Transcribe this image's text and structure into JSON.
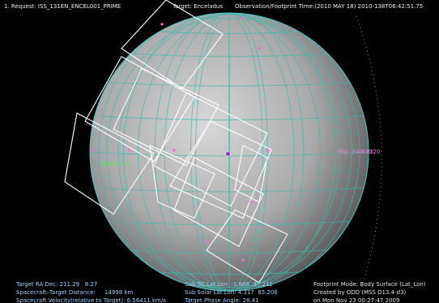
{
  "header": {
    "request": "1. Request: ISS_131EN_ENCEL001_PRIME",
    "target": "Target: Enceladus",
    "time": "Observation/Footprint Time:(2010 MAY 18) 2010-138T06:42:51.75"
  },
  "globe": {
    "body_label": "Enceladus",
    "longitude_labels": [
      "350",
      "340",
      "330",
      "320"
    ]
  },
  "footer": {
    "left": [
      "Target RA Dec: 211.29   8.27",
      "Spacecraft–Target Distance:     14998 km",
      "Spacecraft Velocity(relative to Target): 6.56411 km/s"
    ],
    "middle": [
      "Sub SC Lat Lon: -1.868  37.211",
      "Sub Solar Lat Lon: 4.317  65.206",
      "Target Phase Angle: 28.41"
    ],
    "right": [
      "Footprint Mode: Body Surface (Lat_Lon)",
      "Created by ODD (MSS D13.4-d3)",
      "on Mon Nov 23 00:27:47 2009"
    ]
  }
}
